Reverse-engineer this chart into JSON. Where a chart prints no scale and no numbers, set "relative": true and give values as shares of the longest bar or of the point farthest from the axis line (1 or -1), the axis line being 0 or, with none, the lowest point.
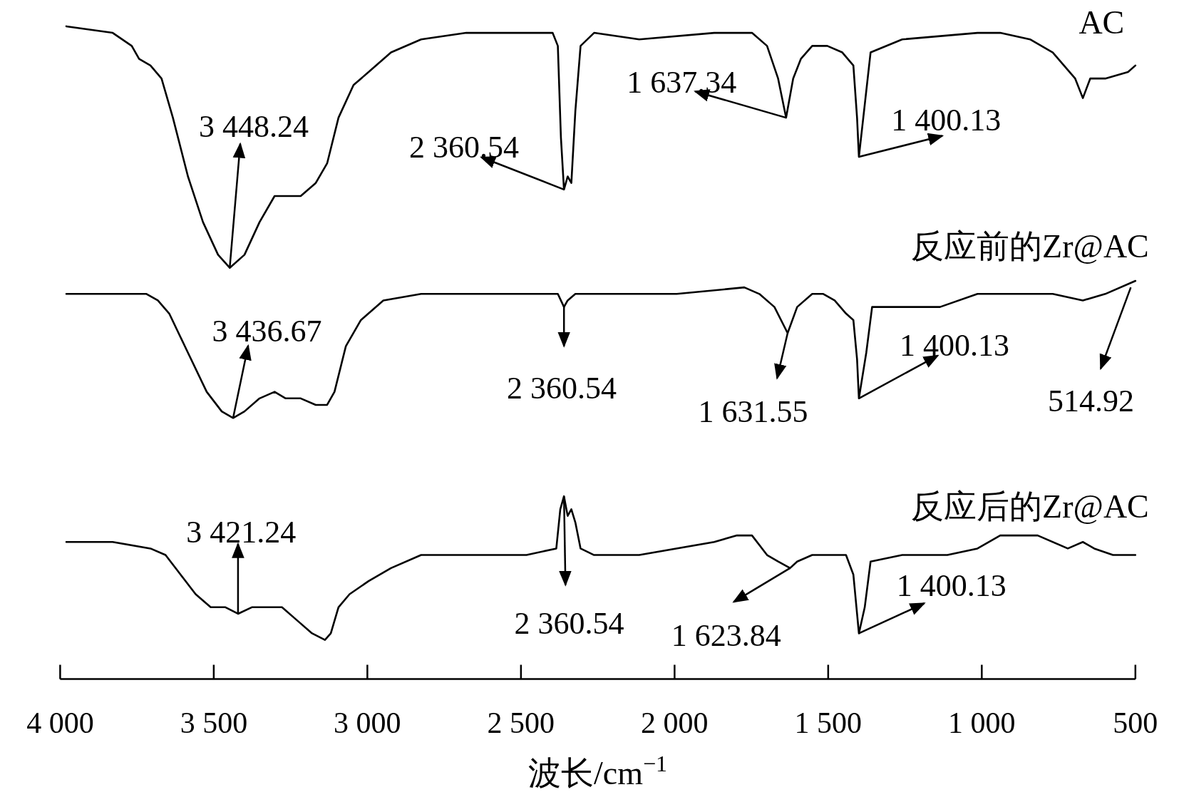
{
  "chart_data": {
    "type": "line",
    "relative": true,
    "xlabel": "波长/cm$^{−1}$",
    "xlim": [
      4000,
      500
    ],
    "xticks": [
      {
        "value": 4000,
        "label": "4 000"
      },
      {
        "value": 3500,
        "label": "3 500"
      },
      {
        "value": 3000,
        "label": "3 000"
      },
      {
        "value": 2500,
        "label": "2 500"
      },
      {
        "value": 2000,
        "label": "2 000"
      },
      {
        "value": 1500,
        "label": "1 500"
      },
      {
        "value": 1000,
        "label": "1 000"
      },
      500
    ],
    "series": [
      {
        "name": "AC",
        "color": "#000000",
        "x": [
          3980,
          3829,
          3767,
          3743,
          3706,
          3670,
          3633,
          3584,
          3535,
          3486,
          3448,
          3400,
          3351,
          3302,
          3253,
          3217,
          3168,
          3131,
          3094,
          3045,
          2996,
          2923,
          2825,
          2678,
          2482,
          2397,
          2380,
          2370,
          2360,
          2348,
          2336,
          2323,
          2306,
          2262,
          2115,
          1871,
          1748,
          1699,
          1663,
          1637,
          1614,
          1589,
          1552,
          1503,
          1454,
          1418,
          1406,
          1400,
          1381,
          1362,
          1259,
          1014,
          940,
          843,
          769,
          696,
          671,
          647,
          598,
          524,
          500
        ],
        "values": [
          1.0,
          0.99,
          0.97,
          0.95,
          0.94,
          0.92,
          0.86,
          0.77,
          0.7,
          0.65,
          0.63,
          0.65,
          0.7,
          0.74,
          0.74,
          0.74,
          0.76,
          0.79,
          0.86,
          0.91,
          0.93,
          0.96,
          0.98,
          0.99,
          0.99,
          0.99,
          0.97,
          0.83,
          0.75,
          0.77,
          0.76,
          0.87,
          0.97,
          0.99,
          0.98,
          0.99,
          0.99,
          0.97,
          0.92,
          0.86,
          0.92,
          0.95,
          0.97,
          0.97,
          0.96,
          0.94,
          0.86,
          0.8,
          0.88,
          0.96,
          0.98,
          0.99,
          0.99,
          0.98,
          0.96,
          0.92,
          0.89,
          0.92,
          0.92,
          0.93,
          0.94
        ]
      },
      {
        "name": "反应前的Zr@AC",
        "color": "#000000",
        "x": [
          3980,
          3853,
          3780,
          3748,
          3719,
          3682,
          3645,
          3584,
          3523,
          3474,
          3437,
          3400,
          3351,
          3302,
          3266,
          3217,
          3168,
          3131,
          3107,
          3070,
          3021,
          2948,
          2825,
          2605,
          2397,
          2380,
          2360,
          2348,
          2323,
          2238,
          1993,
          1773,
          1724,
          1675,
          1632,
          1601,
          1552,
          1516,
          1479,
          1442,
          1418,
          1406,
          1400,
          1376,
          1357,
          1259,
          1136,
          1014,
          892,
          769,
          671,
          598,
          500
        ],
        "values": [
          0.59,
          0.59,
          0.59,
          0.59,
          0.59,
          0.58,
          0.56,
          0.5,
          0.44,
          0.41,
          0.4,
          0.41,
          0.43,
          0.44,
          0.43,
          0.43,
          0.42,
          0.42,
          0.44,
          0.51,
          0.55,
          0.58,
          0.59,
          0.59,
          0.59,
          0.59,
          0.57,
          0.58,
          0.59,
          0.59,
          0.59,
          0.6,
          0.59,
          0.57,
          0.53,
          0.57,
          0.59,
          0.59,
          0.58,
          0.56,
          0.55,
          0.49,
          0.43,
          0.5,
          0.57,
          0.57,
          0.57,
          0.59,
          0.59,
          0.59,
          0.58,
          0.59,
          0.61
        ]
      },
      {
        "name": "反应后的Zr@AC",
        "color": "#000000",
        "x": [
          3980,
          3829,
          3706,
          3657,
          3608,
          3559,
          3510,
          3462,
          3421,
          3376,
          3327,
          3278,
          3229,
          3180,
          3138,
          3119,
          3094,
          3058,
          2996,
          2923,
          2825,
          2678,
          2482,
          2385,
          2372,
          2360,
          2348,
          2336,
          2323,
          2306,
          2262,
          2115,
          1871,
          1797,
          1748,
          1699,
          1663,
          1624,
          1601,
          1552,
          1479,
          1442,
          1418,
          1406,
          1400,
          1381,
          1362,
          1259,
          1112,
          1014,
          940,
          818,
          720,
          671,
          634,
          573,
          500
        ],
        "values": [
          0.21,
          0.21,
          0.2,
          0.19,
          0.16,
          0.13,
          0.11,
          0.11,
          0.1,
          0.11,
          0.11,
          0.11,
          0.09,
          0.07,
          0.06,
          0.07,
          0.11,
          0.13,
          0.15,
          0.17,
          0.19,
          0.19,
          0.19,
          0.2,
          0.26,
          0.28,
          0.25,
          0.26,
          0.24,
          0.2,
          0.19,
          0.19,
          0.21,
          0.22,
          0.22,
          0.19,
          0.18,
          0.17,
          0.18,
          0.19,
          0.19,
          0.19,
          0.16,
          0.1,
          0.07,
          0.11,
          0.18,
          0.19,
          0.19,
          0.2,
          0.22,
          0.22,
          0.2,
          0.21,
          0.2,
          0.19,
          0.19
        ]
      }
    ],
    "annotations": [
      {
        "text": "3 448.24",
        "x": 3448,
        "y": 0.63
      },
      {
        "text": "2 360.54",
        "x": 2360,
        "y": 0.75
      },
      {
        "text": "1 637.34",
        "x": 1637,
        "y": 0.86
      },
      {
        "text": "1 400.13",
        "x": 1400,
        "y": 0.8
      },
      {
        "text": "3 436.67",
        "x": 3437,
        "y": 0.4
      },
      {
        "text": "2 360.54",
        "x": 2360,
        "y": 0.57
      },
      {
        "text": "1 631.55",
        "x": 1632,
        "y": 0.53
      },
      {
        "text": "1 400.13",
        "x": 1400,
        "y": 0.43
      },
      {
        "text": "514.92",
        "x": 515,
        "y": 0.6
      },
      {
        "text": "3 421.24",
        "x": 3421,
        "y": 0.1
      },
      {
        "text": "2 360.54",
        "x": 2360,
        "y": 0.28
      },
      {
        "text": "1 623.84",
        "x": 1624,
        "y": 0.17
      },
      {
        "text": "1 400.13",
        "x": 1400,
        "y": 0.07
      }
    ]
  }
}
